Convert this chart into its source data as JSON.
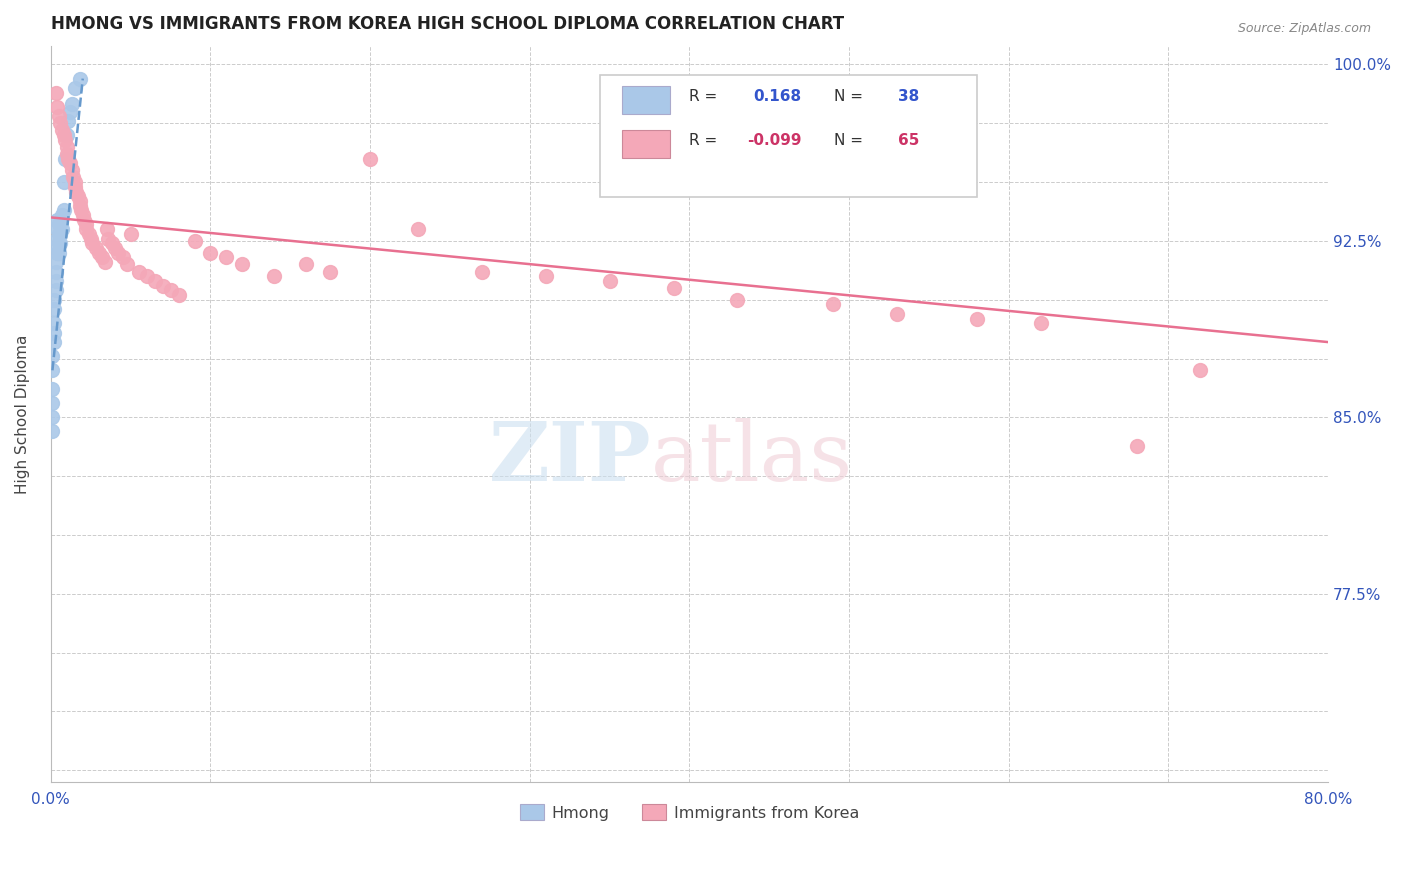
{
  "title": "HMONG VS IMMIGRANTS FROM KOREA HIGH SCHOOL DIPLOMA CORRELATION CHART",
  "source": "Source: ZipAtlas.com",
  "ylabel": "High School Diploma",
  "xlim": [
    0.0,
    0.8
  ],
  "ylim": [
    0.695,
    1.008
  ],
  "hmong_color": "#aac8e8",
  "korea_color": "#f4a8b8",
  "hmong_line_color": "#6699cc",
  "korea_line_color": "#e87090",
  "watermark_zip": "ZIP",
  "watermark_atlas": "atlas",
  "legend_r1_val": "0.168",
  "legend_r1_n": "38",
  "legend_r2_val": "-0.099",
  "legend_r2_n": "65",
  "ytick_positions": [
    0.7,
    0.725,
    0.75,
    0.775,
    0.8,
    0.825,
    0.85,
    0.875,
    0.9,
    0.925,
    0.95,
    0.975,
    1.0
  ],
  "ytick_labels_right": {
    "0.775": "77.5%",
    "0.850": "85.0%",
    "0.925": "92.5%",
    "1.000": "100.0%"
  },
  "xtick_positions": [
    0.0,
    0.1,
    0.2,
    0.3,
    0.4,
    0.5,
    0.6,
    0.7,
    0.8
  ],
  "xtick_labels": {
    "0.0": "0.0%",
    "0.8": "80.0%"
  },
  "hmong_x": [
    0.001,
    0.001,
    0.001,
    0.001,
    0.001,
    0.001,
    0.002,
    0.002,
    0.002,
    0.002,
    0.002,
    0.003,
    0.003,
    0.003,
    0.003,
    0.004,
    0.004,
    0.004,
    0.004,
    0.004,
    0.005,
    0.005,
    0.005,
    0.005,
    0.006,
    0.006,
    0.006,
    0.007,
    0.007,
    0.008,
    0.008,
    0.009,
    0.01,
    0.011,
    0.012,
    0.013,
    0.015,
    0.018
  ],
  "hmong_y": [
    0.844,
    0.85,
    0.856,
    0.862,
    0.87,
    0.876,
    0.882,
    0.886,
    0.89,
    0.896,
    0.9,
    0.904,
    0.908,
    0.912,
    0.916,
    0.92,
    0.923,
    0.926,
    0.93,
    0.934,
    0.92,
    0.924,
    0.928,
    0.932,
    0.924,
    0.928,
    0.932,
    0.93,
    0.936,
    0.938,
    0.95,
    0.96,
    0.97,
    0.976,
    0.98,
    0.983,
    0.99,
    0.994
  ],
  "korea_x": [
    0.003,
    0.004,
    0.005,
    0.006,
    0.007,
    0.008,
    0.009,
    0.01,
    0.01,
    0.011,
    0.012,
    0.013,
    0.014,
    0.015,
    0.015,
    0.016,
    0.017,
    0.018,
    0.018,
    0.019,
    0.02,
    0.021,
    0.022,
    0.022,
    0.024,
    0.025,
    0.026,
    0.028,
    0.03,
    0.032,
    0.034,
    0.035,
    0.036,
    0.038,
    0.04,
    0.042,
    0.045,
    0.048,
    0.05,
    0.055,
    0.06,
    0.065,
    0.07,
    0.075,
    0.08,
    0.09,
    0.1,
    0.11,
    0.12,
    0.14,
    0.16,
    0.175,
    0.2,
    0.23,
    0.27,
    0.31,
    0.35,
    0.39,
    0.43,
    0.49,
    0.53,
    0.58,
    0.62,
    0.68,
    0.72
  ],
  "korea_y": [
    0.988,
    0.982,
    0.978,
    0.975,
    0.972,
    0.97,
    0.968,
    0.965,
    0.962,
    0.96,
    0.958,
    0.955,
    0.952,
    0.95,
    0.948,
    0.946,
    0.944,
    0.942,
    0.94,
    0.938,
    0.936,
    0.934,
    0.932,
    0.93,
    0.928,
    0.926,
    0.924,
    0.922,
    0.92,
    0.918,
    0.916,
    0.93,
    0.926,
    0.924,
    0.922,
    0.92,
    0.918,
    0.915,
    0.928,
    0.912,
    0.91,
    0.908,
    0.906,
    0.904,
    0.902,
    0.925,
    0.92,
    0.918,
    0.915,
    0.91,
    0.915,
    0.912,
    0.96,
    0.93,
    0.912,
    0.91,
    0.908,
    0.905,
    0.9,
    0.898,
    0.894,
    0.892,
    0.89,
    0.838,
    0.87
  ],
  "korea_trend_x": [
    0.0,
    0.8
  ],
  "korea_trend_y": [
    0.935,
    0.882
  ],
  "hmong_trend_x": [
    0.001,
    0.02
  ],
  "hmong_trend_y": [
    0.87,
    0.994
  ]
}
